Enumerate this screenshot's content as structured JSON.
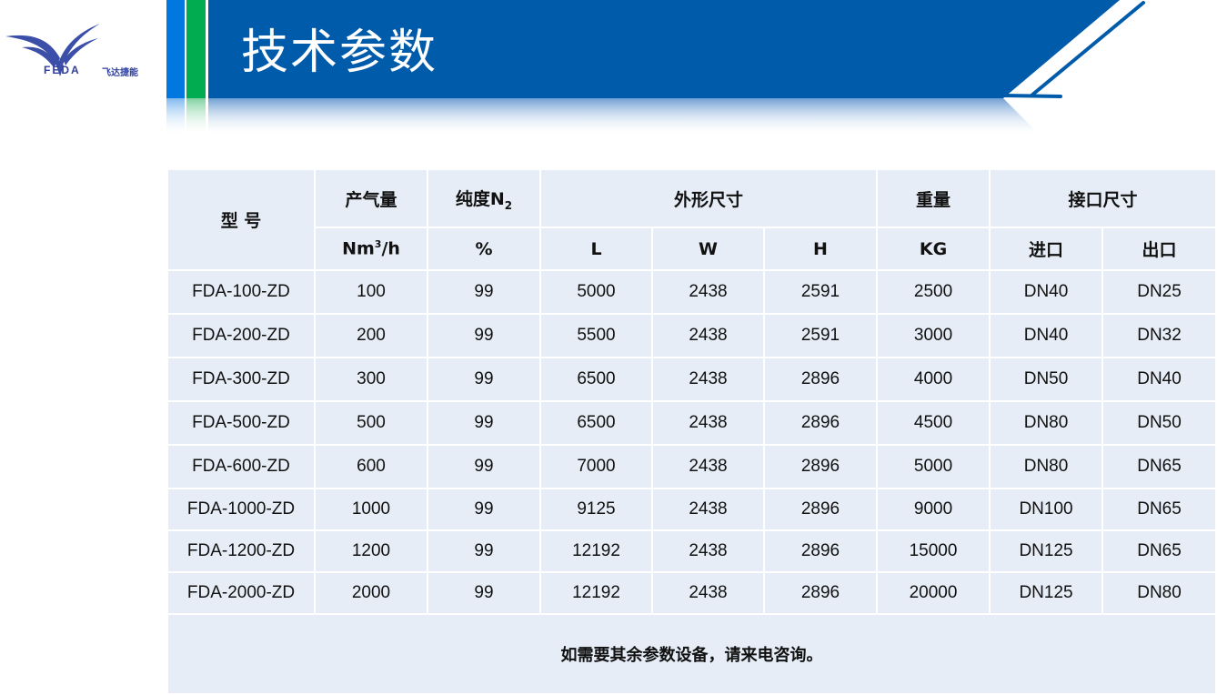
{
  "logo": {
    "brand": "FEDA",
    "brand_cn": "飞达捷能"
  },
  "header": {
    "title": "技术参数"
  },
  "colors": {
    "header_blue": "#005bab",
    "accent_blue": "#0078e0",
    "accent_green": "#00ac4f",
    "cell_bg": "#e6edf6"
  },
  "table": {
    "headers": {
      "model": "型 号",
      "flow": "产气量",
      "purity": "纯度N",
      "purity_sub": "2",
      "dimensions": "外形尺寸",
      "weight": "重量",
      "interface": "接口尺寸"
    },
    "units": {
      "flow": "Nm",
      "flow_sup": "3",
      "flow_tail": "/h",
      "purity": "%",
      "L": "L",
      "W": "W",
      "H": "H",
      "weight": "KG",
      "inlet": "进口",
      "outlet": "出口"
    },
    "rows": [
      [
        "FDA-100-ZD",
        "100",
        "99",
        "5000",
        "2438",
        "2591",
        "2500",
        "DN40",
        "DN25"
      ],
      [
        "FDA-200-ZD",
        "200",
        "99",
        "5500",
        "2438",
        "2591",
        "3000",
        "DN40",
        "DN32"
      ],
      [
        "FDA-300-ZD",
        "300",
        "99",
        "6500",
        "2438",
        "2896",
        "4000",
        "DN50",
        "DN40"
      ],
      [
        "FDA-500-ZD",
        "500",
        "99",
        "6500",
        "2438",
        "2896",
        "4500",
        "DN80",
        "DN50"
      ],
      [
        "FDA-600-ZD",
        "600",
        "99",
        "7000",
        "2438",
        "2896",
        "5000",
        "DN80",
        "DN65"
      ],
      [
        "FDA-1000-ZD",
        "1000",
        "99",
        "9125",
        "2438",
        "2896",
        "9000",
        "DN100",
        "DN65"
      ],
      [
        "FDA-1200-ZD",
        "1200",
        "99",
        "12192",
        "2438",
        "2896",
        "15000",
        "DN125",
        "DN65"
      ],
      [
        "FDA-2000-ZD",
        "2000",
        "99",
        "12192",
        "2438",
        "2896",
        "20000",
        "DN125",
        "DN80"
      ]
    ],
    "footer": "如需要其余参数设备，请来电咨询。"
  }
}
